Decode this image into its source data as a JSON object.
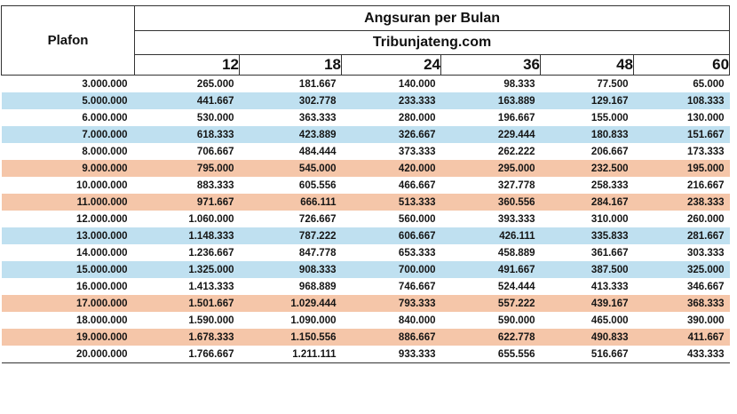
{
  "header": {
    "plafon_label": "Plafon",
    "title": "Angsuran per Bulan",
    "source": "Tribunjateng.com",
    "terms": [
      "12",
      "18",
      "24",
      "36",
      "48",
      "60"
    ]
  },
  "colors": {
    "blue_row": "#bfe0f0",
    "orange_row": "#f5c6a9",
    "white_row": "#ffffff"
  },
  "rows": [
    {
      "shade": "white",
      "plafon": "3.000.000",
      "values": [
        "265.000",
        "181.667",
        "140.000",
        "98.333",
        "77.500",
        "65.000"
      ]
    },
    {
      "shade": "blue",
      "plafon": "5.000.000",
      "values": [
        "441.667",
        "302.778",
        "233.333",
        "163.889",
        "129.167",
        "108.333"
      ]
    },
    {
      "shade": "white",
      "plafon": "6.000.000",
      "values": [
        "530.000",
        "363.333",
        "280.000",
        "196.667",
        "155.000",
        "130.000"
      ]
    },
    {
      "shade": "blue",
      "plafon": "7.000.000",
      "values": [
        "618.333",
        "423.889",
        "326.667",
        "229.444",
        "180.833",
        "151.667"
      ]
    },
    {
      "shade": "white",
      "plafon": "8.000.000",
      "values": [
        "706.667",
        "484.444",
        "373.333",
        "262.222",
        "206.667",
        "173.333"
      ]
    },
    {
      "shade": "orange",
      "plafon": "9.000.000",
      "values": [
        "795.000",
        "545.000",
        "420.000",
        "295.000",
        "232.500",
        "195.000"
      ]
    },
    {
      "shade": "white",
      "plafon": "10.000.000",
      "values": [
        "883.333",
        "605.556",
        "466.667",
        "327.778",
        "258.333",
        "216.667"
      ]
    },
    {
      "shade": "orange",
      "plafon": "11.000.000",
      "values": [
        "971.667",
        "666.111",
        "513.333",
        "360.556",
        "284.167",
        "238.333"
      ]
    },
    {
      "shade": "white",
      "plafon": "12.000.000",
      "values": [
        "1.060.000",
        "726.667",
        "560.000",
        "393.333",
        "310.000",
        "260.000"
      ]
    },
    {
      "shade": "blue",
      "plafon": "13.000.000",
      "values": [
        "1.148.333",
        "787.222",
        "606.667",
        "426.111",
        "335.833",
        "281.667"
      ]
    },
    {
      "shade": "white",
      "plafon": "14.000.000",
      "values": [
        "1.236.667",
        "847.778",
        "653.333",
        "458.889",
        "361.667",
        "303.333"
      ]
    },
    {
      "shade": "blue",
      "plafon": "15.000.000",
      "values": [
        "1.325.000",
        "908.333",
        "700.000",
        "491.667",
        "387.500",
        "325.000"
      ]
    },
    {
      "shade": "white",
      "plafon": "16.000.000",
      "values": [
        "1.413.333",
        "968.889",
        "746.667",
        "524.444",
        "413.333",
        "346.667"
      ]
    },
    {
      "shade": "orange",
      "plafon": "17.000.000",
      "values": [
        "1.501.667",
        "1.029.444",
        "793.333",
        "557.222",
        "439.167",
        "368.333"
      ]
    },
    {
      "shade": "white",
      "plafon": "18.000.000",
      "values": [
        "1.590.000",
        "1.090.000",
        "840.000",
        "590.000",
        "465.000",
        "390.000"
      ]
    },
    {
      "shade": "orange",
      "plafon": "19.000.000",
      "values": [
        "1.678.333",
        "1.150.556",
        "886.667",
        "622.778",
        "490.833",
        "411.667"
      ]
    },
    {
      "shade": "white",
      "plafon": "20.000.000",
      "values": [
        "1.766.667",
        "1.211.111",
        "933.333",
        "655.556",
        "516.667",
        "433.333"
      ]
    }
  ]
}
